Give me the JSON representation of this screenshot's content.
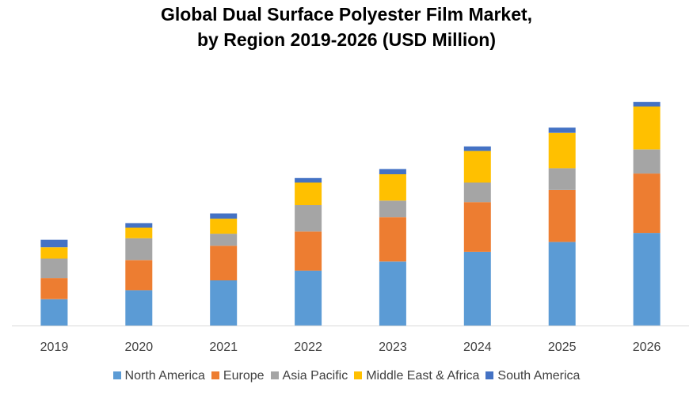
{
  "chart_data": {
    "type": "bar",
    "stacked": true,
    "title_line1": "Global Dual Surface Polyester Film Market,",
    "title_line2": "by Region 2019-2026 (USD Million)",
    "xlabel": "",
    "ylabel": "",
    "grid": false,
    "legend_position": "bottom",
    "categories": [
      "2019",
      "2020",
      "2021",
      "2022",
      "2023",
      "2024",
      "2025",
      "2026"
    ],
    "series": [
      {
        "name": "North America",
        "color": "#5B9BD5",
        "values": [
          35,
          47,
          60,
          73,
          85,
          98,
          111,
          123
        ]
      },
      {
        "name": "Europe",
        "color": "#ED7D31",
        "values": [
          28,
          40,
          46,
          52,
          59,
          66,
          69,
          79
        ]
      },
      {
        "name": "Asia Pacific",
        "color": "#A5A5A5",
        "values": [
          26,
          29,
          16,
          35,
          22,
          26,
          29,
          32
        ]
      },
      {
        "name": "Middle East & Africa",
        "color": "#FFC000",
        "values": [
          15,
          14,
          20,
          30,
          35,
          42,
          47,
          57
        ]
      },
      {
        "name": "South America",
        "color": "#4472C4",
        "values": [
          10,
          6,
          7,
          6,
          7,
          6,
          7,
          6
        ]
      }
    ]
  }
}
